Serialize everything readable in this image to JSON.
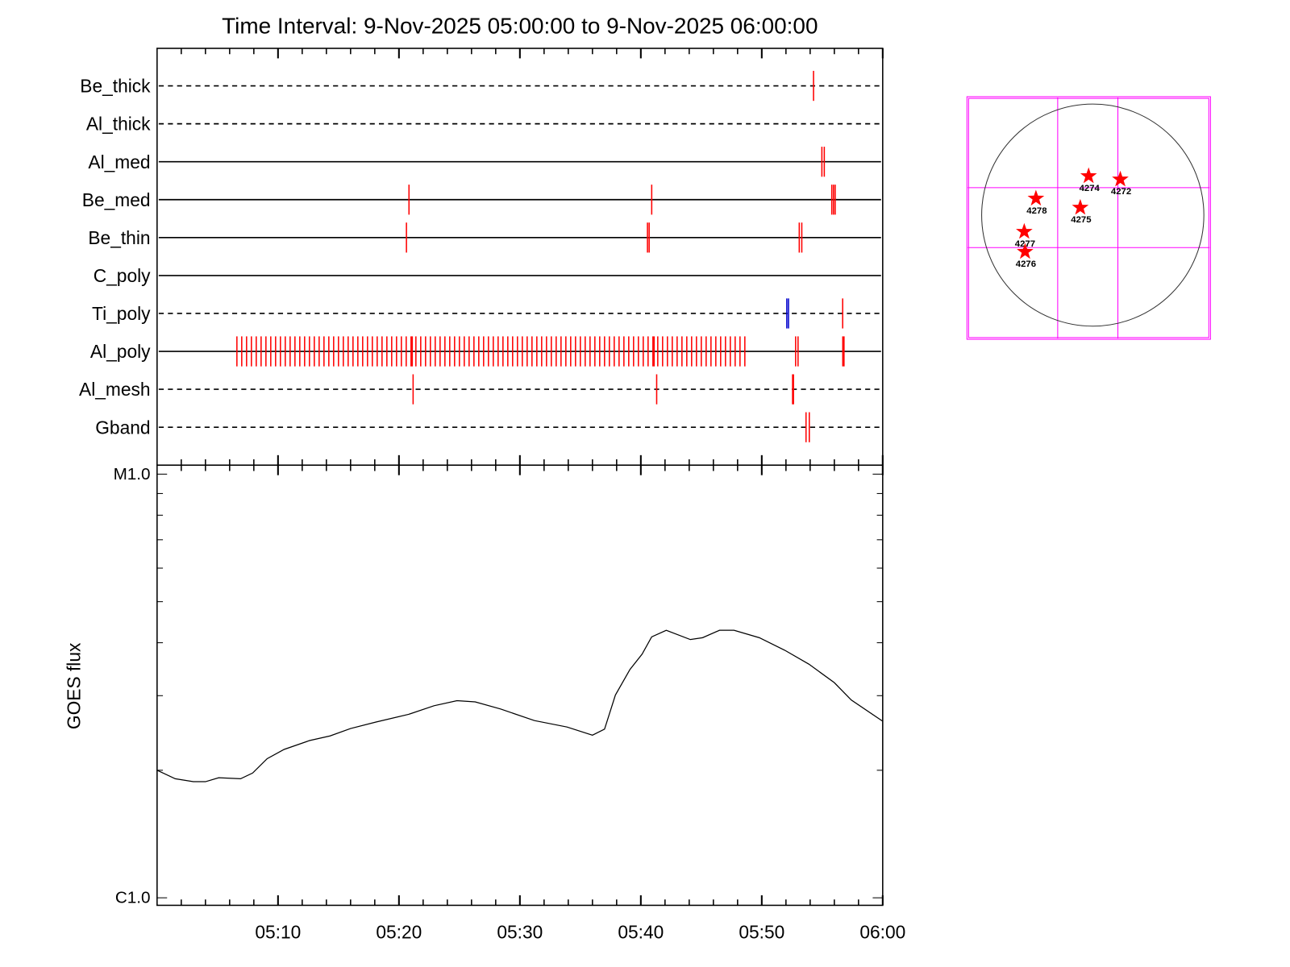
{
  "chart_data": [
    {
      "type": "timeline",
      "title": "Time Interval:  9-Nov-2025 05:00:00 to  9-Nov-2025 06:00:00",
      "xlim": [
        0,
        60
      ],
      "series": [
        {
          "name": "Be_thick",
          "style": "dashed",
          "color": "#ff0000",
          "events": [
            54.28
          ]
        },
        {
          "name": "Al_thick",
          "style": "dashed",
          "color": "#ff0000",
          "events": []
        },
        {
          "name": "Al_med",
          "style": "solid",
          "color": "#ff0000",
          "events": [
            54.97,
            55.17
          ]
        },
        {
          "name": "Be_med",
          "style": "solid",
          "color": "#ff0000",
          "events": [
            20.83,
            40.9,
            55.79,
            55.93,
            56.07
          ]
        },
        {
          "name": "Be_thin",
          "style": "solid",
          "color": "#ff0000",
          "events": [
            20.62,
            40.55,
            40.69,
            53.1,
            53.31
          ]
        },
        {
          "name": "C_poly",
          "style": "solid",
          "color": "#ff0000",
          "events": []
        },
        {
          "name": "Ti_poly",
          "style": "dashed",
          "color": "#ff0000",
          "events": [
            52.07,
            52.21,
            56.69
          ],
          "event_colors": [
            "#0000cc",
            "#0000cc",
            "#ff0000"
          ]
        },
        {
          "name": "Al_poly",
          "style": "solid",
          "color": "#ff0000",
          "events": [
            6.6,
            7.0,
            7.4,
            7.8,
            8.2,
            8.6,
            9.0,
            9.4,
            9.8,
            10.2,
            10.6,
            11.0,
            11.4,
            11.8,
            12.2,
            12.6,
            13.0,
            13.4,
            13.8,
            14.2,
            14.6,
            15.0,
            15.4,
            15.8,
            16.2,
            16.6,
            17.0,
            17.4,
            17.8,
            18.2,
            18.6,
            19.0,
            19.4,
            19.8,
            20.2,
            20.6,
            21.0,
            21.1,
            21.4,
            21.8,
            22.2,
            22.6,
            23.0,
            23.4,
            23.8,
            24.2,
            24.6,
            25.0,
            25.4,
            25.8,
            26.2,
            26.6,
            27.0,
            27.4,
            27.8,
            28.2,
            28.6,
            29.0,
            29.4,
            29.8,
            30.2,
            30.6,
            31.0,
            31.4,
            31.8,
            32.2,
            32.6,
            33.0,
            33.4,
            33.8,
            34.2,
            34.6,
            35.0,
            35.4,
            35.8,
            36.2,
            36.6,
            37.0,
            37.4,
            37.8,
            38.2,
            38.6,
            39.0,
            39.4,
            39.8,
            40.2,
            40.6,
            41.0,
            41.1,
            41.4,
            41.8,
            42.2,
            42.6,
            43.0,
            43.4,
            43.8,
            44.2,
            44.6,
            45.0,
            45.4,
            45.8,
            46.2,
            46.6,
            47.0,
            47.4,
            47.8,
            48.2,
            48.6,
            52.8,
            53.0,
            56.7,
            56.8
          ]
        },
        {
          "name": "Al_mesh",
          "style": "dashed",
          "color": "#ff0000",
          "events": [
            21.17,
            41.31,
            52.55,
            52.62
          ]
        },
        {
          "name": "Gband",
          "style": "dashed",
          "color": "#ff0000",
          "events": [
            53.66,
            53.93
          ]
        }
      ]
    },
    {
      "type": "line",
      "ylabel": "GOES flux",
      "log_y": true,
      "color": "#000000",
      "xlim": [
        0,
        60
      ],
      "xticks": [
        {
          "value": 10,
          "label": "05:10"
        },
        {
          "value": 20,
          "label": "05:20"
        },
        {
          "value": 30,
          "label": "05:30"
        },
        {
          "value": 40,
          "label": "05:40"
        },
        {
          "value": 50,
          "label": "05:50"
        },
        {
          "value": 60,
          "label": "06:00"
        }
      ],
      "xminorticks": [
        2,
        4,
        6,
        8,
        12,
        14,
        16,
        18,
        22,
        24,
        26,
        28,
        32,
        34,
        36,
        38,
        42,
        44,
        46,
        48,
        52,
        54,
        56,
        58
      ],
      "ylim": [
        9.6e-07,
        1.05e-05
      ],
      "yticks": [
        {
          "value": 1e-06,
          "label": "C1.0"
        },
        {
          "value": 1e-05,
          "label": "M1.0"
        }
      ],
      "yminorticks": [
        2e-06,
        3e-06,
        4e-06,
        5e-06,
        6e-06,
        7e-06,
        8e-06,
        9e-06
      ],
      "x": [
        0,
        1.5,
        3.0,
        4.0,
        5.1,
        6.9,
        7.9,
        9.1,
        10.5,
        12.6,
        14.3,
        16.0,
        18.1,
        20.8,
        22.9,
        24.8,
        26.3,
        28.4,
        31.2,
        33.9,
        36.0,
        37.0,
        37.9,
        39.1,
        40.1,
        40.9,
        42.1,
        44.1,
        45.1,
        46.5,
        47.7,
        49.8,
        51.9,
        53.9,
        56.0,
        57.4,
        60
      ],
      "values": [
        2e-06,
        1.91e-06,
        1.88e-06,
        1.88e-06,
        1.92e-06,
        1.91e-06,
        1.97e-06,
        2.13e-06,
        2.24e-06,
        2.35e-06,
        2.41e-06,
        2.51e-06,
        2.6e-06,
        2.71e-06,
        2.84e-06,
        2.92e-06,
        2.9e-06,
        2.79e-06,
        2.62e-06,
        2.53e-06,
        2.42e-06,
        2.5e-06,
        3.01e-06,
        3.46e-06,
        3.76e-06,
        4.13e-06,
        4.28e-06,
        4.07e-06,
        4.11e-06,
        4.28e-06,
        4.28e-06,
        4.11e-06,
        3.84e-06,
        3.56e-06,
        3.22e-06,
        2.93e-06,
        2.61e-06
      ]
    },
    {
      "type": "sunmap",
      "xlim": [
        -1080,
        1010
      ],
      "ylim": [
        -1070,
        1020
      ],
      "radius": 960,
      "grid_x": [
        -303,
        217
      ],
      "grid_y": [
        -282,
        238
      ],
      "grid_color": "#ff00ff",
      "marker_color": "#ff0000",
      "regions": [
        {
          "label": "4274",
          "x": -36,
          "y": 339
        },
        {
          "label": "4272",
          "x": 238,
          "y": 310
        },
        {
          "label": "4278",
          "x": -491,
          "y": 144
        },
        {
          "label": "4275",
          "x": -108,
          "y": 65
        },
        {
          "label": "4277",
          "x": -592,
          "y": -144
        },
        {
          "label": "4276",
          "x": -585,
          "y": -318
        }
      ]
    }
  ]
}
